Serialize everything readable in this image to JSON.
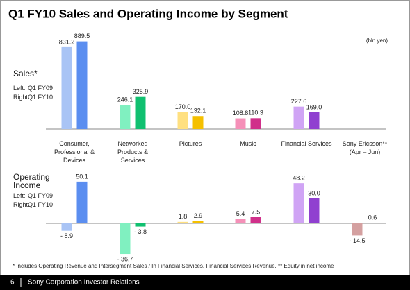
{
  "title": "Q1 FY10 Sales and Operating Income by Segment",
  "units": "(bln yen)",
  "legend_prefixes": [
    "Left:",
    "Right:"
  ],
  "chart_data": [
    {
      "type": "bar",
      "label": "Sales*",
      "categories": [
        "Consumer, Professional & Devices",
        "Networked Products & Services",
        "Pictures",
        "Music",
        "Financial Services",
        "Sony Ericsson** (Apr – Jun)"
      ],
      "ylim": [
        0,
        950
      ],
      "series": [
        {
          "name": "Q1 FY09",
          "colors": [
            "#a9c4f5",
            "#80f0c0",
            "#ffe080",
            "#f590b8",
            "#d0a4f5",
            "#d4a0a0"
          ],
          "values": [
            831.2,
            246.1,
            170.0,
            108.8,
            227.6,
            null
          ],
          "value_labels": [
            "831.2",
            "246.1",
            "170.0",
            "108.8",
            "227.6",
            null
          ]
        },
        {
          "name": "Q1 FY10",
          "colors": [
            "#5b8ef0",
            "#10c070",
            "#f5c000",
            "#d0308a",
            "#9040d0",
            "#a03040"
          ],
          "values": [
            889.5,
            325.9,
            132.1,
            110.3,
            169.0,
            null
          ],
          "value_labels": [
            "889.5",
            "325.9",
            "132.1",
            "110.3",
            "169.0",
            null
          ]
        }
      ]
    },
    {
      "type": "bar",
      "label": "Operating Income",
      "ylim": [
        -40,
        55
      ],
      "series": [
        {
          "name": "Q1 FY09",
          "colors": [
            "#a9c4f5",
            "#80f0c0",
            "#ffe080",
            "#f590b8",
            "#d0a4f5",
            "#d4a0a0"
          ],
          "values": [
            -8.9,
            -36.7,
            1.8,
            5.4,
            48.2,
            -14.5
          ],
          "value_labels": [
            "- 8.9",
            "- 36.7",
            "1.8",
            "5.4",
            "48.2",
            "- 14.5"
          ]
        },
        {
          "name": "Q1 FY10",
          "colors": [
            "#5b8ef0",
            "#10c070",
            "#f5c000",
            "#d0308a",
            "#9040d0",
            "#a03040"
          ],
          "values": [
            50.1,
            -3.8,
            2.9,
            7.5,
            30.0,
            0.6
          ],
          "value_labels": [
            "50.1",
            "- 3.8",
            "2.9",
            "7.5",
            "30.0",
            "0.6"
          ]
        }
      ]
    }
  ],
  "footnote": "* Includes Operating Revenue and Intersegment Sales / In Financial Services, Financial Services Revenue.  ** Equity in net income",
  "footer": {
    "page": "6",
    "text": "Sony Corporation Investor Relations"
  }
}
